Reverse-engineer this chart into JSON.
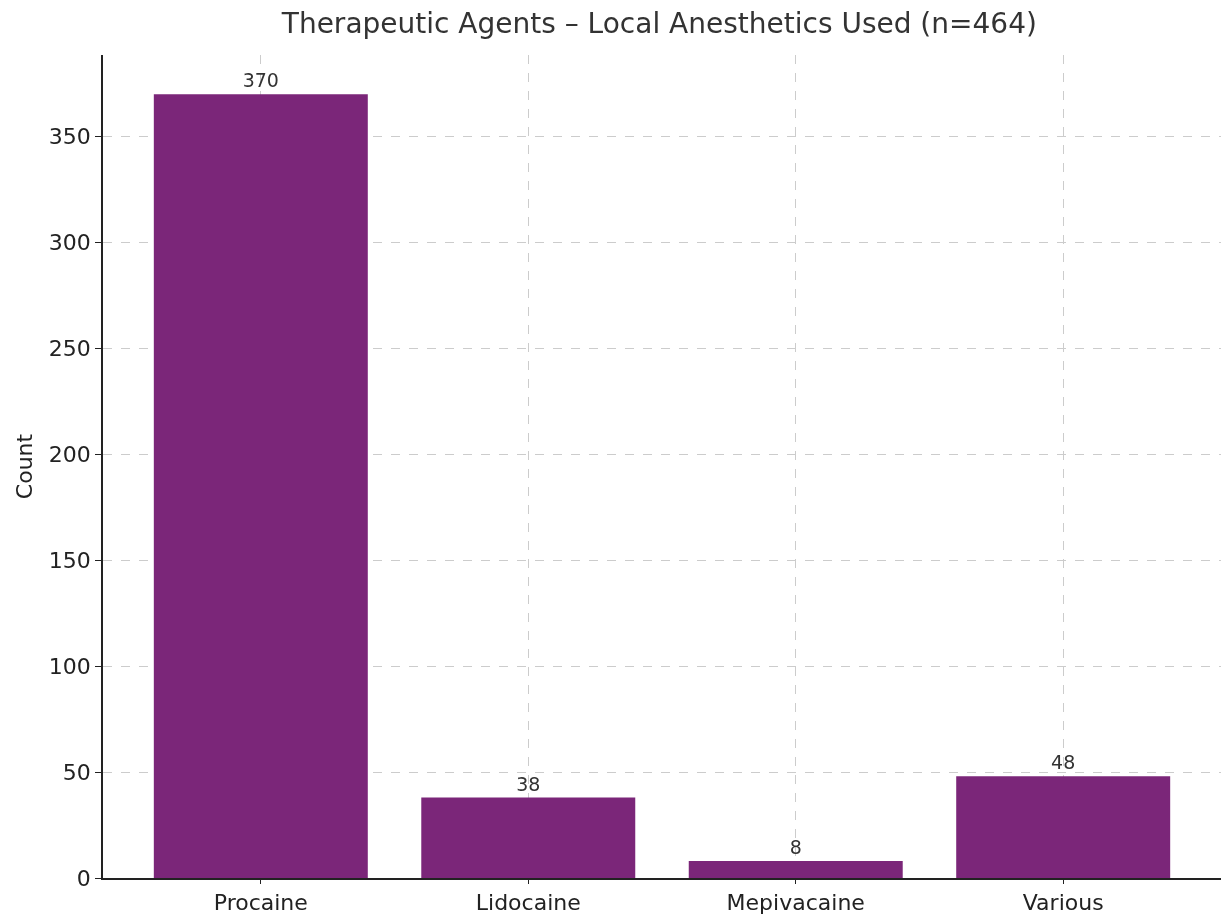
{
  "chart_data": {
    "type": "bar",
    "title": "Therapeutic Agents – Local Anesthetics Used (n=464)",
    "ylabel": "Count",
    "categories": [
      "Procaine",
      "Lidocaine",
      "Mepivacaine",
      "Various"
    ],
    "values": [
      370,
      38,
      8,
      48
    ],
    "color": "#7b2679",
    "ylim": [
      0,
      388.5
    ],
    "yticks": [
      0,
      50,
      100,
      150,
      200,
      250,
      300,
      350
    ],
    "grid": true,
    "data_labels": true,
    "legend": false
  }
}
